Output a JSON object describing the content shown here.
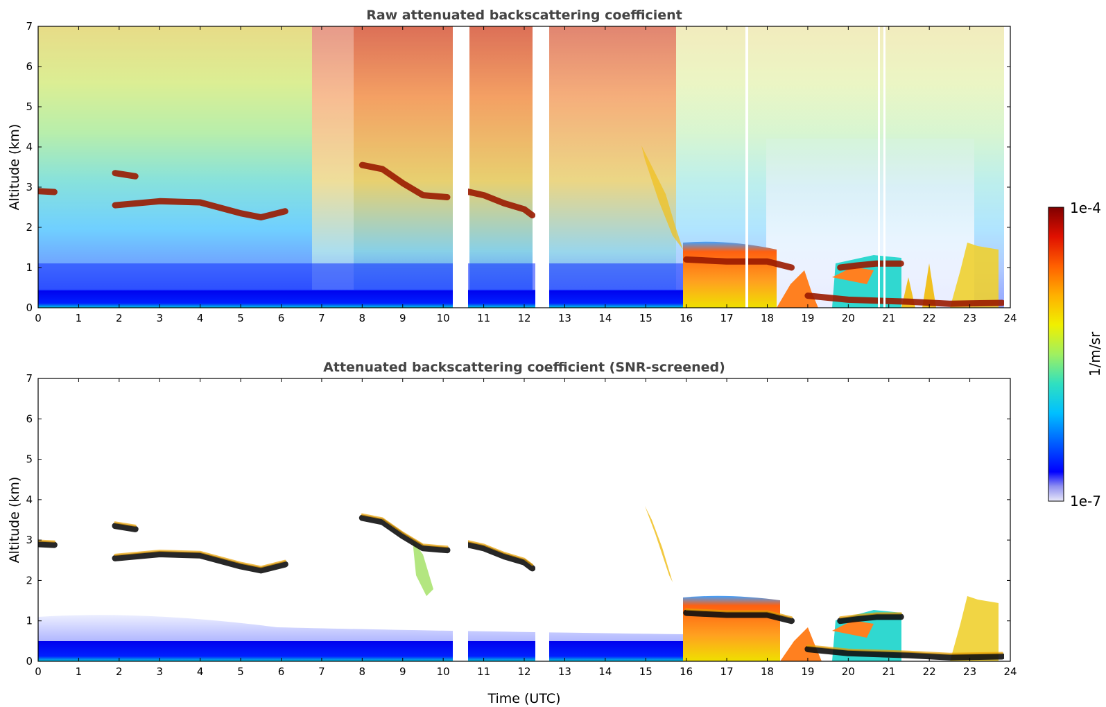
{
  "chart_data": [
    {
      "type": "heatmap",
      "title": "Raw attenuated backscattering coefficient",
      "xlabel": "",
      "ylabel": "Altitude (km)",
      "xlim": [
        0,
        24
      ],
      "ylim": [
        0,
        7
      ],
      "xticks": [
        "0",
        "1",
        "2",
        "3",
        "4",
        "5",
        "6",
        "7",
        "8",
        "9",
        "10",
        "11",
        "12",
        "13",
        "14",
        "15",
        "16",
        "17",
        "18",
        "19",
        "20",
        "21",
        "22",
        "23",
        "24"
      ],
      "yticks": [
        "0",
        "1",
        "2",
        "3",
        "4",
        "5",
        "6",
        "7"
      ],
      "data_gaps_utc": [
        [
          10.15,
          10.55
        ],
        [
          12.2,
          12.55
        ]
      ],
      "layers": [
        {
          "name": "cloud layer",
          "x": [
            0,
            0.4
          ],
          "y": [
            2.9,
            2.88
          ]
        },
        {
          "name": "cloud layer",
          "x": [
            1.9,
            2.4
          ],
          "y": [
            3.35,
            3.27
          ]
        },
        {
          "name": "cloud layer",
          "x": [
            1.9,
            3.0,
            4.0,
            5.0,
            5.5,
            6.1
          ],
          "y": [
            2.55,
            2.65,
            2.62,
            2.35,
            2.25,
            2.4
          ]
        },
        {
          "name": "cloud layer",
          "x": [
            8.0,
            8.5,
            9.0,
            9.5,
            10.1
          ],
          "y": [
            3.55,
            3.45,
            3.1,
            2.8,
            2.75
          ]
        },
        {
          "name": "cloud layer",
          "x": [
            10.55,
            11.0,
            11.5,
            12.0,
            12.2
          ],
          "y": [
            2.9,
            2.8,
            2.6,
            2.45,
            2.3
          ]
        },
        {
          "name": "low cloud top",
          "x": [
            16.0,
            17.0,
            18.0,
            18.6
          ],
          "y": [
            1.2,
            1.15,
            1.15,
            1.0
          ]
        },
        {
          "name": "low cloud top",
          "x": [
            19.8,
            20.2,
            20.7,
            21.3
          ],
          "y": [
            1.0,
            1.05,
            1.1,
            1.1
          ]
        },
        {
          "name": "boundary layer",
          "x": [
            19.0,
            20.0,
            21.5,
            22.5,
            23.8
          ],
          "y": [
            0.3,
            0.2,
            0.15,
            0.1,
            0.12
          ]
        }
      ]
    },
    {
      "type": "heatmap",
      "title": "Attenuated backscattering coefficient (SNR-screened)",
      "xlabel": "Time (UTC)",
      "ylabel": "Altitude (km)",
      "xlim": [
        0,
        24
      ],
      "ylim": [
        0,
        7
      ],
      "xticks": [
        "0",
        "1",
        "2",
        "3",
        "4",
        "5",
        "6",
        "7",
        "8",
        "9",
        "10",
        "11",
        "12",
        "13",
        "14",
        "15",
        "16",
        "17",
        "18",
        "19",
        "20",
        "21",
        "22",
        "23",
        "24"
      ],
      "yticks": [
        "0",
        "1",
        "2",
        "3",
        "4",
        "5",
        "6",
        "7"
      ],
      "data_gaps_utc": [
        [
          10.15,
          10.55
        ],
        [
          12.2,
          12.55
        ]
      ]
    }
  ],
  "colorbar": {
    "label": "1/m/sr",
    "max_label": "1e-4",
    "min_label": "1e-7",
    "scale": "log",
    "colormap": [
      "#e8e8f8",
      "#9090f0",
      "#0000ff",
      "#0060ff",
      "#00c0ff",
      "#30e0c0",
      "#a0f060",
      "#f0f000",
      "#ffb000",
      "#ff6000",
      "#e01000",
      "#800000"
    ]
  }
}
